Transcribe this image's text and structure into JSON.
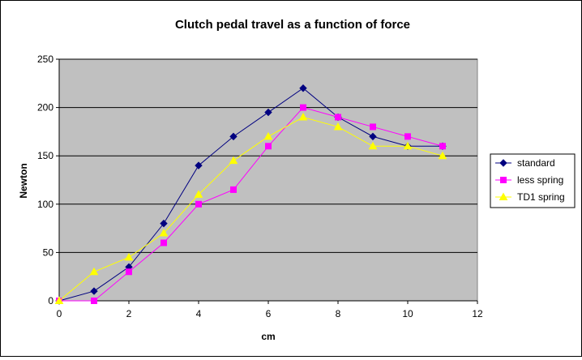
{
  "chart_data": {
    "type": "line",
    "title": "Clutch pedal travel as a function of force",
    "xlabel": "cm",
    "ylabel": "Newton",
    "xlim": [
      0,
      12
    ],
    "ylim": [
      0,
      250
    ],
    "x_ticks": [
      0,
      2,
      4,
      6,
      8,
      10,
      12
    ],
    "y_ticks": [
      0,
      50,
      100,
      150,
      200,
      250
    ],
    "grid": "horizontal",
    "legend_position": "right",
    "plot_background": "#C0C0C0",
    "series": [
      {
        "name": "standard",
        "color": "#000080",
        "marker": "diamond",
        "x": [
          0,
          1,
          2,
          3,
          4,
          5,
          6,
          7,
          8,
          9,
          10,
          11
        ],
        "y": [
          0,
          10,
          35,
          80,
          140,
          170,
          195,
          220,
          190,
          170,
          160,
          160
        ]
      },
      {
        "name": "less spring",
        "color": "#FF00FF",
        "marker": "square",
        "x": [
          0,
          1,
          2,
          3,
          4,
          5,
          6,
          7,
          8,
          9,
          10,
          11
        ],
        "y": [
          0,
          0,
          30,
          60,
          100,
          115,
          160,
          200,
          190,
          180,
          170,
          160
        ]
      },
      {
        "name": "TD1 spring",
        "color": "#FFFF00",
        "marker": "triangle",
        "x": [
          0,
          1,
          2,
          3,
          4,
          5,
          6,
          7,
          8,
          9,
          10,
          11
        ],
        "y": [
          0,
          30,
          45,
          70,
          110,
          145,
          170,
          190,
          180,
          160,
          160,
          150
        ]
      }
    ]
  }
}
